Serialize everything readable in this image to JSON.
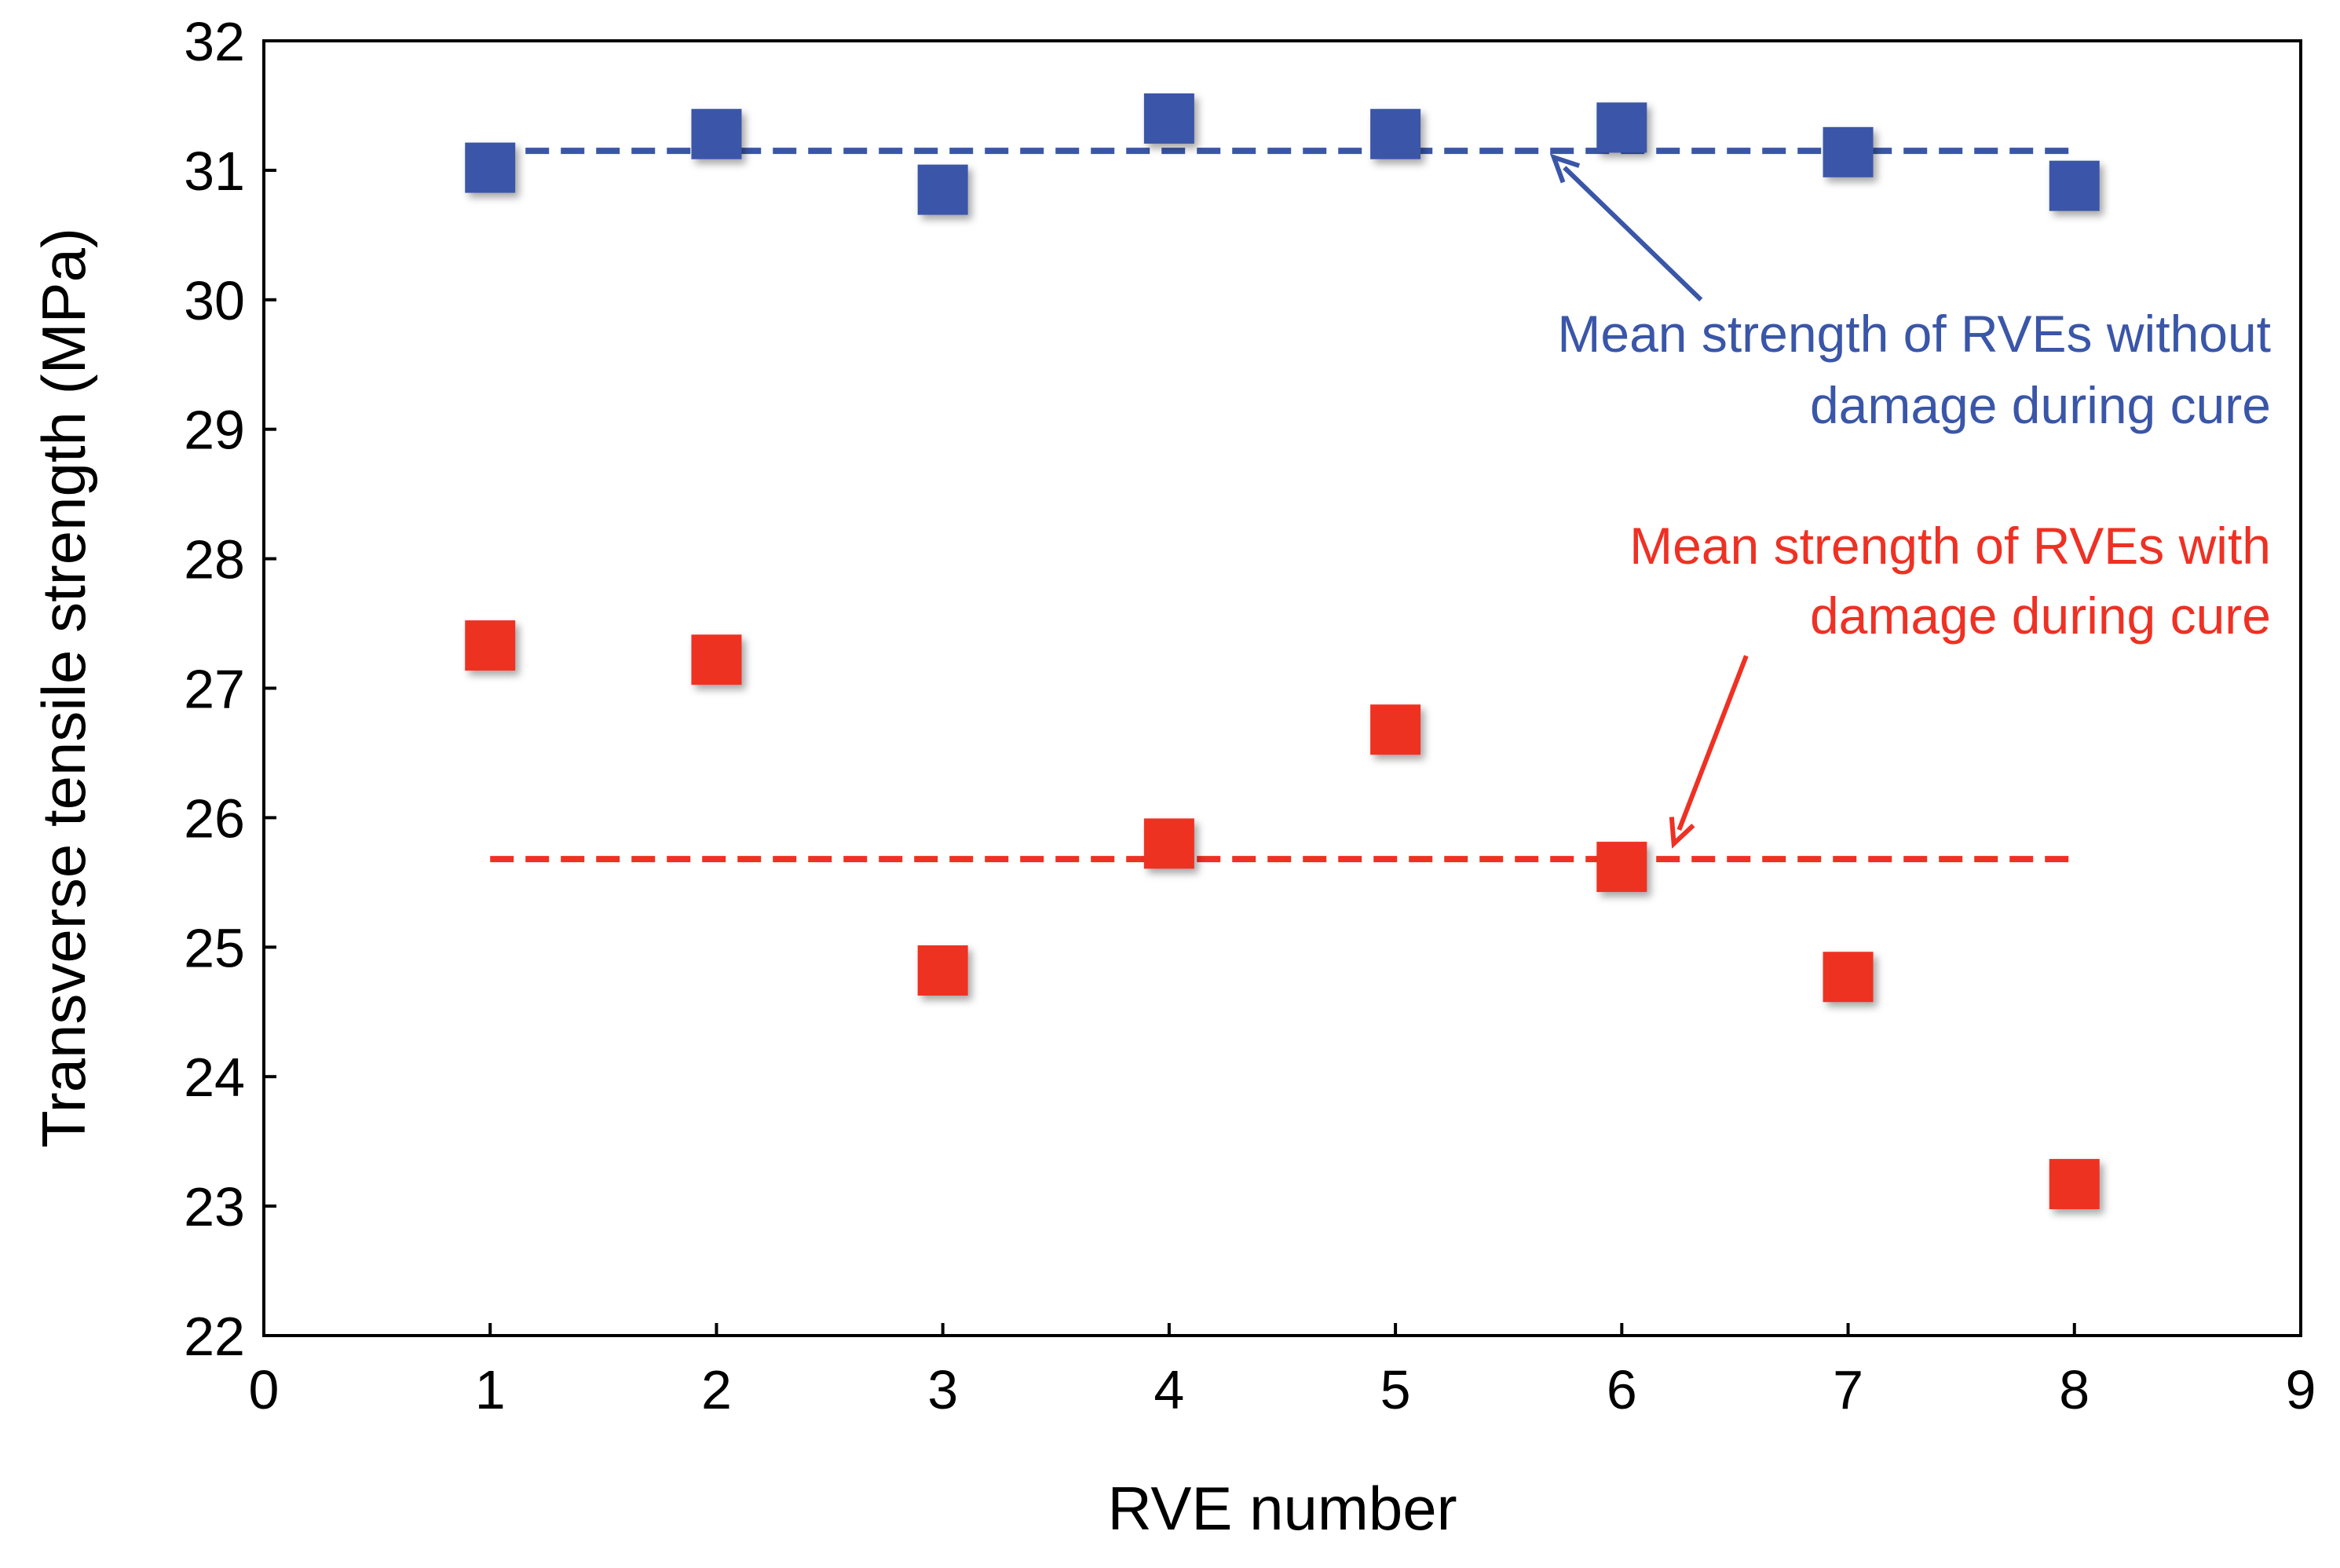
{
  "chart_data": {
    "type": "scatter",
    "title": "",
    "xlabel": "RVE number",
    "ylabel": "Transverse tensile strength (MPa)",
    "xlim": [
      0,
      9
    ],
    "ylim": [
      22,
      32
    ],
    "xticks": [
      0,
      1,
      2,
      3,
      4,
      5,
      6,
      7,
      8,
      9
    ],
    "yticks": [
      22,
      23,
      24,
      25,
      26,
      27,
      28,
      29,
      30,
      31,
      32
    ],
    "grid": false,
    "legend": "none",
    "marker": "square",
    "series": [
      {
        "color": "#3A56A8",
        "x": [
          1,
          2,
          3,
          4,
          5,
          6,
          7,
          8
        ],
        "y": [
          31.02,
          31.28,
          30.85,
          31.4,
          31.28,
          31.33,
          31.14,
          30.88
        ]
      },
      {
        "color": "#EE3124",
        "x": [
          1,
          2,
          3,
          4,
          5,
          6,
          7,
          8
        ],
        "y": [
          27.33,
          27.22,
          24.82,
          25.8,
          26.68,
          25.62,
          24.77,
          23.17
        ]
      }
    ],
    "mean_lines": [
      {
        "color": "#3A56A8",
        "y": 31.15,
        "x_range": [
          1,
          8
        ]
      },
      {
        "color": "#EE3124",
        "y": 25.68,
        "x_range": [
          1,
          8
        ]
      }
    ],
    "annotations": [
      {
        "name": "annotation-without-damage",
        "color": "#3A56A8",
        "lines": [
          "Mean strength of RVEs without",
          "damage during cure"
        ],
        "arrow_from": [
          6.35,
          30.0
        ],
        "arrow_to": [
          5.7,
          31.1
        ]
      },
      {
        "name": "annotation-with-damage",
        "color": "#EE3124",
        "lines": [
          "Mean strength of RVEs with",
          "damage during cure"
        ],
        "arrow_from": [
          6.55,
          27.25
        ],
        "arrow_to": [
          6.23,
          25.8
        ]
      }
    ]
  }
}
